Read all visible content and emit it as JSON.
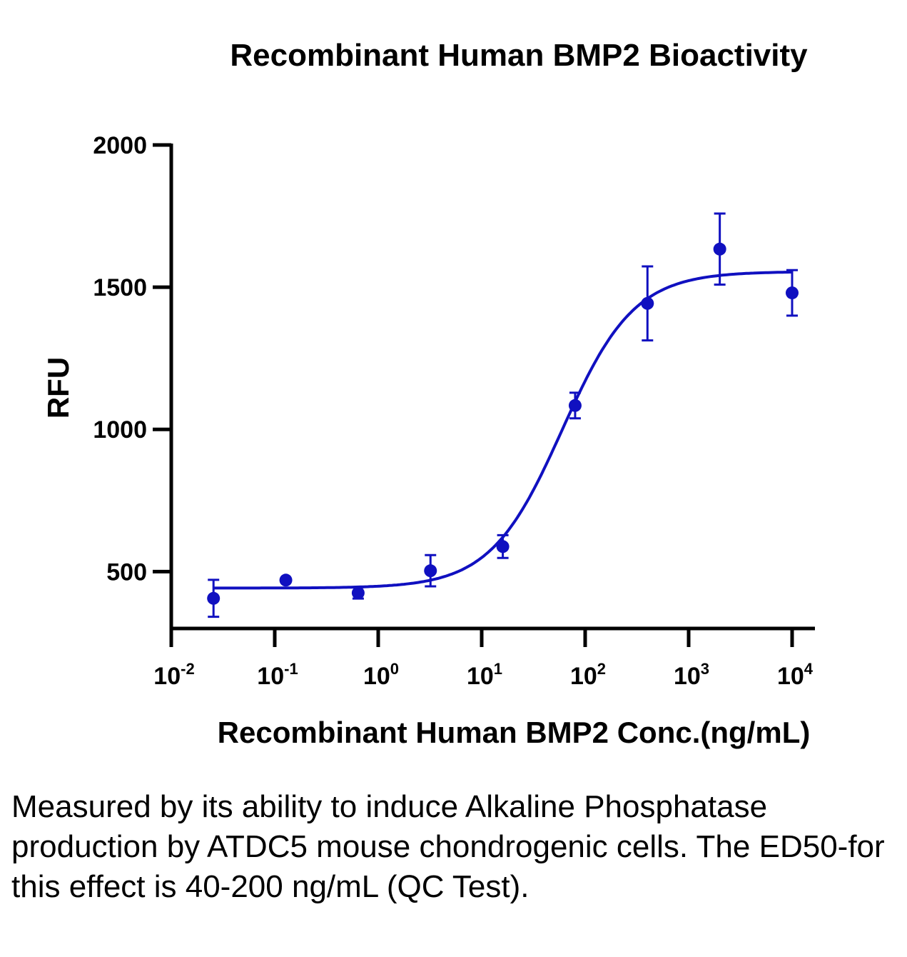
{
  "chart_data": {
    "type": "scatter",
    "title": "Recombinant Human BMP2 Bioactivity",
    "xlabel": "Recombinant Human BMP2 Conc.(ng/mL)",
    "ylabel": "RFU",
    "x_scale": "log",
    "xlim": [
      0.01,
      10000
    ],
    "ylim": [
      300,
      2000
    ],
    "y_ticks": [
      500,
      1000,
      1500,
      2000
    ],
    "x_ticks": [
      {
        "value": 0.01,
        "base": "10",
        "exp": "-2"
      },
      {
        "value": 0.1,
        "base": "10",
        "exp": "-1"
      },
      {
        "value": 1,
        "base": "10",
        "exp": "0"
      },
      {
        "value": 10,
        "base": "10",
        "exp": "1"
      },
      {
        "value": 100,
        "base": "10",
        "exp": "2"
      },
      {
        "value": 1000,
        "base": "10",
        "exp": "3"
      },
      {
        "value": 10000,
        "base": "10",
        "exp": "4"
      }
    ],
    "grid": false,
    "color": "#1010c0",
    "series": [
      {
        "points": [
          {
            "x": 0.0256,
            "y": 406,
            "err": 65
          },
          {
            "x": 0.128,
            "y": 470,
            "err": 0
          },
          {
            "x": 0.64,
            "y": 425,
            "err": 20
          },
          {
            "x": 3.2,
            "y": 503,
            "err": 55
          },
          {
            "x": 16,
            "y": 588,
            "err": 40
          },
          {
            "x": 80,
            "y": 1084,
            "err": 45
          },
          {
            "x": 400,
            "y": 1443,
            "err": 130
          },
          {
            "x": 2000,
            "y": 1634,
            "err": 125
          },
          {
            "x": 10000,
            "y": 1480,
            "err": 80
          }
        ]
      }
    ],
    "fit": {
      "bottom": 442,
      "top": 1555,
      "ec50": 60,
      "hill": 1.25
    }
  },
  "caption": "Measured by its ability to induce Alkaline Phosphatase production by ATDC5 mouse chondrogenic cells. The ED50-for this effect is 40-200 ng/mL (QC Test)."
}
